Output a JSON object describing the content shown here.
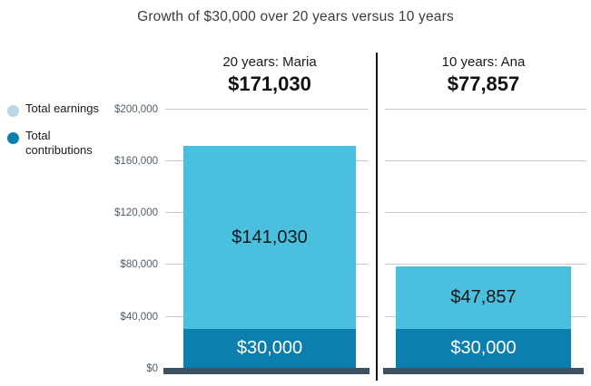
{
  "title": "Growth of $30,000 over 20 years versus 10 years",
  "legend": {
    "items": [
      {
        "label": "Total earnings",
        "swatch_color": "#b5d9e4"
      },
      {
        "label": "Total contributions",
        "swatch_color": "#0d7fae"
      }
    ]
  },
  "chart_data": {
    "type": "bar",
    "stacked": true,
    "title": "Growth of $30,000 over 20 years versus 10 years",
    "categories": [
      "20 years: Maria",
      "10 years: Ana"
    ],
    "totals": [
      171030,
      77857
    ],
    "totals_display": [
      "$171,030",
      "$77,857"
    ],
    "series": [
      {
        "name": "Total contributions",
        "values": [
          30000,
          30000
        ],
        "labels": [
          "$30,000",
          "$30,000"
        ],
        "color": "#0d7fae"
      },
      {
        "name": "Total earnings",
        "values": [
          141030,
          47857
        ],
        "labels": [
          "$141,030",
          "$47,857"
        ],
        "color": "#4bbfde"
      }
    ],
    "xlabel": "",
    "ylabel": "",
    "ylim": [
      0,
      200000
    ],
    "yticks": [
      {
        "value": 200000,
        "label": "$200,000"
      },
      {
        "value": 160000,
        "label": "$160,000"
      },
      {
        "value": 120000,
        "label": "$120,000"
      },
      {
        "value": 80000,
        "label": "$80,000"
      },
      {
        "value": 40000,
        "label": "$40,000"
      },
      {
        "value": 0,
        "label": "$0"
      }
    ],
    "grid": "horizontal",
    "legend_position": "left"
  },
  "colors": {
    "earnings_bar": "#4bbfde",
    "contributions_bar": "#0d7fae",
    "legend_earnings_dot": "#b5d9e4",
    "baseline": "#3d5260",
    "gridline": "#c6cacc",
    "divider": "#141414",
    "title_text": "#3c3c3c",
    "axis_label_text": "#4f5d68"
  }
}
